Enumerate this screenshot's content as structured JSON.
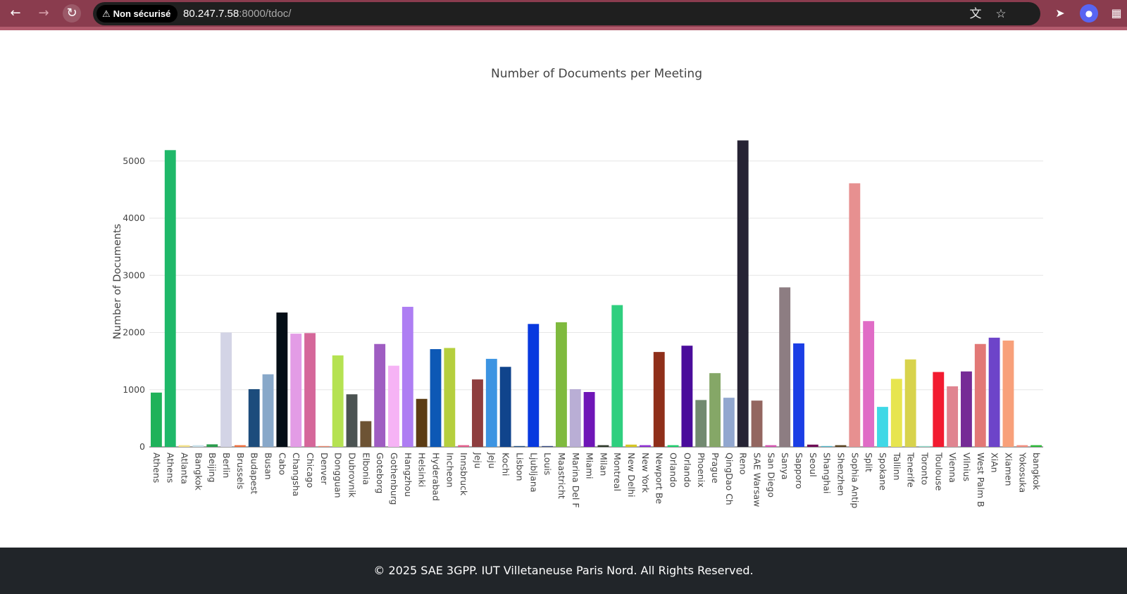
{
  "browser": {
    "security_label": "Non sécurisé",
    "url_host": "80.247.7.58",
    "url_rest": ":8000/tdoc/",
    "icons": [
      "back-arrow-icon",
      "forward-arrow-icon",
      "reload-icon",
      "warning-icon",
      "translate-icon",
      "star-icon",
      "cursor-extension-icon",
      "avatar-extension-icon",
      "extensions-puzzle-icon"
    ]
  },
  "chart_data": {
    "type": "bar",
    "title": "Number of Documents per Meeting",
    "xlabel": "",
    "ylabel": "Number of Documents",
    "ylim": [
      0,
      5600
    ],
    "yticks": [
      0,
      1000,
      2000,
      3000,
      4000,
      5000
    ],
    "grid": true,
    "categories": [
      "Athens",
      "Athens",
      "Atlanta",
      "Bangkok",
      "Beijing",
      "Berlin",
      "Brussels",
      "Budapest",
      "Busan",
      "Cabo",
      "Changsha",
      "Chicago",
      "Denver",
      "Dongguan",
      "Dubrovnik",
      "Elbonia",
      "Goteborg",
      "Gothenburg",
      "Hangzhou",
      "Helsinki",
      "Hyderabad",
      "Incheon",
      "Innsbruck",
      "Jeju",
      "Jeju",
      "Kochi",
      "Lisbon",
      "Ljubljana",
      "Louis",
      "Maastricht",
      "Marina Del F",
      "Miami",
      "Milan",
      "Montreal",
      "New Delhi",
      "New York",
      "Newport Be",
      "Orlando",
      "Orlando",
      "Phoenix",
      "Prague",
      "QingDao Ch",
      "Reno",
      "SAE Warsaw",
      "San Diego",
      "Sanya",
      "Sapporo",
      "Seoul",
      "Shanghai",
      "Shenzhen",
      "Sophia Antip",
      "Split",
      "Spokane",
      "Tallinn",
      "Tenerife",
      "Toronto",
      "Toulouse",
      "Vienna",
      "Vilnius",
      "West Palm B",
      "XiAn",
      "Xiamen",
      "Yokosuka",
      "bangkok"
    ],
    "values": [
      950,
      5190,
      30,
      30,
      45,
      2000,
      30,
      1010,
      1270,
      2350,
      1980,
      1990,
      15,
      1600,
      920,
      450,
      1800,
      1420,
      2450,
      840,
      1710,
      1730,
      30,
      1180,
      1540,
      1400,
      15,
      2150,
      15,
      2180,
      1010,
      960,
      30,
      2480,
      40,
      30,
      1660,
      30,
      1770,
      820,
      1290,
      860,
      5360,
      810,
      30,
      2790,
      1810,
      40,
      15,
      30,
      4610,
      2200,
      700,
      1190,
      1530,
      15,
      1310,
      1060,
      1320,
      1800,
      1910,
      1860,
      30,
      30
    ],
    "colors": [
      "#1fb25a",
      "#1fb869",
      "#f3e28c",
      "#c9e1ea",
      "#2a9d4c",
      "#d3d4e6",
      "#f07040",
      "#1c4c7c",
      "#88a8c9",
      "#040e16",
      "#e39ce6",
      "#d5679a",
      "#e9846b",
      "#b5e252",
      "#4b5352",
      "#6d5334",
      "#9f5dc2",
      "#f6b3f5",
      "#ae7ef3",
      "#5c3c14",
      "#0d58b5",
      "#b5cf3e",
      "#e35f8c",
      "#8e3e3f",
      "#3c94e2",
      "#10448c",
      "#204f83",
      "#0839df",
      "#304680",
      "#7fba3e",
      "#b9aed5",
      "#6f16b7",
      "#2f3b2b",
      "#2fcf7f",
      "#d5c624",
      "#8f2fd3",
      "#8f2f1a",
      "#1fcf6e",
      "#4a0c9b",
      "#728a70",
      "#85a767",
      "#92a7cf",
      "#262334",
      "#936660",
      "#d456b1",
      "#8d7d82",
      "#1b3ee5",
      "#6e0c56",
      "#4db5c8",
      "#5c4522",
      "#e79090",
      "#e06cc6",
      "#3fd8e6",
      "#e7e54f",
      "#d8d34c",
      "#8dd8c8",
      "#f21b30",
      "#e08490",
      "#762b96",
      "#e27876",
      "#6d44c9",
      "#f8a07a",
      "#f28f80",
      "#2eb93b"
    ]
  },
  "footer": {
    "text": "© 2025 SAE 3GPP. IUT Villetaneuse Paris Nord. All Rights Reserved."
  }
}
